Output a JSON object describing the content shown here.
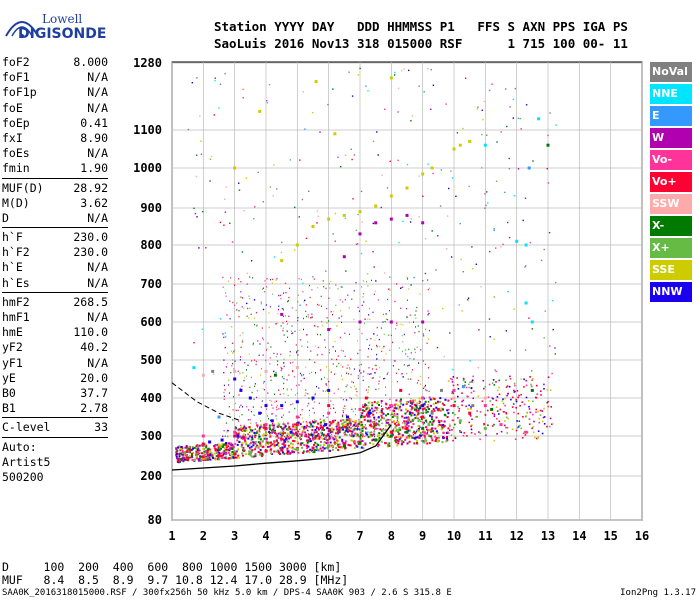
{
  "logo": {
    "line1": "Lowell",
    "line2": "DIGISONDE"
  },
  "header": {
    "line1": "Station YYYY DAY   DDD HHMMSS P1   FFS S AXN PPS IGA PS",
    "line2": "SaoLuis 2016 Nov13 318 015000 RSF      1 715 100 00- 11"
  },
  "params_group1": [
    {
      "label": "foF2",
      "value": "8.000"
    },
    {
      "label": "foF1",
      "value": "N/A"
    },
    {
      "label": "foF1p",
      "value": "N/A"
    },
    {
      "label": "foE",
      "value": "N/A"
    },
    {
      "label": "foEp",
      "value": "0.41"
    },
    {
      "label": "fxI",
      "value": "8.90"
    },
    {
      "label": "foEs",
      "value": "N/A"
    },
    {
      "label": "fmin",
      "value": "1.90"
    }
  ],
  "params_group2": [
    {
      "label": "MUF(D)",
      "value": "28.92"
    },
    {
      "label": "M(D)",
      "value": "3.62"
    },
    {
      "label": "D",
      "value": "N/A"
    }
  ],
  "params_group3": [
    {
      "label": "h`F",
      "value": "230.0"
    },
    {
      "label": "h`F2",
      "value": "230.0"
    },
    {
      "label": "h`E",
      "value": "N/A"
    },
    {
      "label": "h`Es",
      "value": "N/A"
    }
  ],
  "params_group4": [
    {
      "label": "hmF2",
      "value": "268.5"
    },
    {
      "label": "hmF1",
      "value": "N/A"
    },
    {
      "label": "hmE",
      "value": "110.0"
    },
    {
      "label": "yF2",
      "value": "40.2"
    },
    {
      "label": "yF1",
      "value": "N/A"
    },
    {
      "label": "yE",
      "value": "20.0"
    },
    {
      "label": "B0",
      "value": "37.7"
    },
    {
      "label": "B1",
      "value": "2.78"
    }
  ],
  "params_group5": [
    {
      "label": "C-level",
      "value": "33"
    }
  ],
  "auto": {
    "line1": "Auto:",
    "line2": "Artist5",
    "line3": "500200"
  },
  "legend": [
    {
      "label": "NoVal",
      "color": "#808080"
    },
    {
      "label": "NNE",
      "color": "#00e5ff"
    },
    {
      "label": "E",
      "color": "#3399ff"
    },
    {
      "label": "W",
      "color": "#b000b0"
    },
    {
      "label": "Vo-",
      "color": "#ff3399"
    },
    {
      "label": "Vo+",
      "color": "#ff0033"
    },
    {
      "label": "SSW",
      "color": "#ffaaaa"
    },
    {
      "label": "X-",
      "color": "#007a00"
    },
    {
      "label": "X+",
      "color": "#66bb44"
    },
    {
      "label": "SSE",
      "color": "#cccc00"
    },
    {
      "label": "NNW",
      "color": "#1a00ee"
    }
  ],
  "footer": {
    "d_line": "D     100  200  400  600  800 1000 1500 3000 [km]",
    "muf_line": "MUF   8.4  8.5  8.9  9.7 10.8 12.4 17.0 28.9 [MHz]",
    "info": "SAA0K_2016318015000.RSF / 300fx256h 50 kHz 5.0 km / DPS-4 SAA0K 903 / 2.6 S 315.8 E",
    "version": "Ion2Png 1.3.17"
  },
  "chart_data": {
    "type": "scatter",
    "x_ticks": [
      "1",
      "2",
      "3",
      "4",
      "5",
      "6",
      "7",
      "8",
      "9",
      "10",
      "11",
      "12",
      "13",
      "14",
      "15",
      "16"
    ],
    "y_ticks": [
      "80",
      "200",
      "300",
      "400",
      "500",
      "600",
      "700",
      "800",
      "900",
      "1000",
      "1100",
      "1280"
    ],
    "xlim": [
      1,
      16
    ],
    "ylim": [
      80,
      1280
    ],
    "y_scale": "nonlinear",
    "grid": true,
    "legend_placement": "right",
    "series": [
      {
        "name": "SSE",
        "color": "#cccc00",
        "points": [
          [
            5.0,
            800
          ],
          [
            5.5,
            850
          ],
          [
            6.0,
            870
          ],
          [
            6.5,
            880
          ],
          [
            7.0,
            890
          ],
          [
            7.5,
            905
          ],
          [
            8.0,
            930
          ],
          [
            8.5,
            950
          ],
          [
            9.0,
            985
          ],
          [
            9.3,
            1000
          ],
          [
            10.0,
            1050
          ],
          [
            10.2,
            1060
          ],
          [
            10.5,
            1070
          ],
          [
            4.5,
            760
          ],
          [
            3.0,
            1000
          ],
          [
            3.8,
            1150
          ],
          [
            5.6,
            1230
          ],
          [
            8.0,
            1240
          ],
          [
            6.2,
            1090
          ]
        ]
      },
      {
        "name": "W",
        "color": "#b000b0",
        "points": [
          [
            6.5,
            770
          ],
          [
            7.0,
            830
          ],
          [
            7.5,
            860
          ],
          [
            8.0,
            870
          ],
          [
            8.5,
            880
          ],
          [
            9.0,
            860
          ],
          [
            4.5,
            620
          ],
          [
            6.0,
            580
          ],
          [
            7.0,
            600
          ],
          [
            8.0,
            600
          ],
          [
            9.0,
            600
          ]
        ]
      },
      {
        "name": "NNW",
        "color": "#1a00ee",
        "points": [
          [
            3.0,
            450
          ],
          [
            3.2,
            420
          ],
          [
            3.5,
            400
          ],
          [
            4.0,
            380
          ],
          [
            4.5,
            380
          ],
          [
            5.0,
            390
          ],
          [
            5.5,
            400
          ],
          [
            6.0,
            420
          ],
          [
            3.8,
            360
          ],
          [
            4.2,
            340
          ],
          [
            2.2,
            285
          ],
          [
            2.6,
            290
          ],
          [
            3.1,
            300
          ],
          [
            4.8,
            310
          ],
          [
            5.9,
            330
          ],
          [
            6.6,
            350
          ],
          [
            7.3,
            360
          ],
          [
            9.0,
            380
          ]
        ]
      },
      {
        "name": "Vo+",
        "color": "#ff0033",
        "points": [
          [
            1.2,
            238
          ],
          [
            1.5,
            242
          ],
          [
            2.0,
            248
          ],
          [
            2.5,
            252
          ],
          [
            3.0,
            255
          ],
          [
            3.5,
            258
          ],
          [
            4.0,
            262
          ],
          [
            4.5,
            265
          ],
          [
            5.0,
            268
          ],
          [
            5.5,
            270
          ],
          [
            6.0,
            275
          ],
          [
            6.5,
            280
          ],
          [
            7.0,
            285
          ],
          [
            7.5,
            290
          ],
          [
            8.0,
            310
          ],
          [
            8.5,
            320
          ],
          [
            9.0,
            350
          ],
          [
            9.5,
            370
          ],
          [
            10.0,
            380
          ],
          [
            10.5,
            360
          ],
          [
            6.0,
            380
          ],
          [
            7.2,
            400
          ],
          [
            8.3,
            420
          ],
          [
            5.0,
            330
          ],
          [
            4.0,
            320
          ],
          [
            3.0,
            300
          ],
          [
            2.0,
            280
          ]
        ]
      },
      {
        "name": "Vo-",
        "color": "#ff3399",
        "points": [
          [
            2.0,
            300
          ],
          [
            3.0,
            310
          ],
          [
            4.0,
            330
          ],
          [
            5.0,
            350
          ],
          [
            6.0,
            360
          ],
          [
            7.0,
            370
          ],
          [
            8.0,
            380
          ],
          [
            9.0,
            400
          ],
          [
            10.0,
            420
          ],
          [
            11.0,
            380
          ],
          [
            11.5,
            330
          ],
          [
            12.3,
            310
          ]
        ]
      },
      {
        "name": "X-",
        "color": "#007a00",
        "points": [
          [
            6.5,
            275
          ],
          [
            7.0,
            282
          ],
          [
            7.5,
            290
          ],
          [
            8.0,
            300
          ],
          [
            8.5,
            310
          ],
          [
            9.0,
            320
          ],
          [
            4.3,
            460
          ],
          [
            11.2,
            370
          ],
          [
            12.5,
            420
          ],
          [
            13.0,
            1060
          ]
        ]
      },
      {
        "name": "X+",
        "color": "#66bb44",
        "points": [
          [
            3.5,
            259
          ],
          [
            5.0,
            266
          ],
          [
            6.0,
            276
          ],
          [
            8.2,
            315
          ],
          [
            9.2,
            330
          ],
          [
            10.2,
            340
          ],
          [
            11.0,
            320
          ]
        ]
      },
      {
        "name": "SSW",
        "color": "#ffaaaa",
        "points": [
          [
            2.0,
            460
          ],
          [
            3.0,
            470
          ],
          [
            4.0,
            470
          ],
          [
            5.0,
            480
          ],
          [
            10.0,
            400
          ],
          [
            11.0,
            400
          ]
        ]
      },
      {
        "name": "NNE",
        "color": "#00e5ff",
        "points": [
          [
            1.7,
            480
          ],
          [
            12.5,
            600
          ],
          [
            12.3,
            650
          ],
          [
            11.0,
            1060
          ],
          [
            12.7,
            1130
          ],
          [
            12.0,
            810
          ],
          [
            12.3,
            800
          ]
        ]
      },
      {
        "name": "E",
        "color": "#3399ff",
        "points": [
          [
            2.5,
            350
          ],
          [
            12.4,
            1000
          ],
          [
            10.3,
            430
          ]
        ]
      },
      {
        "name": "NoVal",
        "color": "#808080",
        "points": [
          [
            2.3,
            470
          ],
          [
            9.3,
            360
          ],
          [
            9.6,
            420
          ],
          [
            10.6,
            380
          ]
        ]
      }
    ],
    "profile_curve": [
      [
        1,
        215
      ],
      [
        2,
        220
      ],
      [
        3,
        225
      ],
      [
        4,
        232
      ],
      [
        5,
        238
      ],
      [
        6,
        245
      ],
      [
        7,
        258
      ],
      [
        7.5,
        275
      ],
      [
        8,
        330
      ]
    ],
    "dashed_curve": [
      [
        1,
        440
      ],
      [
        1.8,
        390
      ],
      [
        2.5,
        360
      ],
      [
        3.2,
        340
      ]
    ]
  }
}
